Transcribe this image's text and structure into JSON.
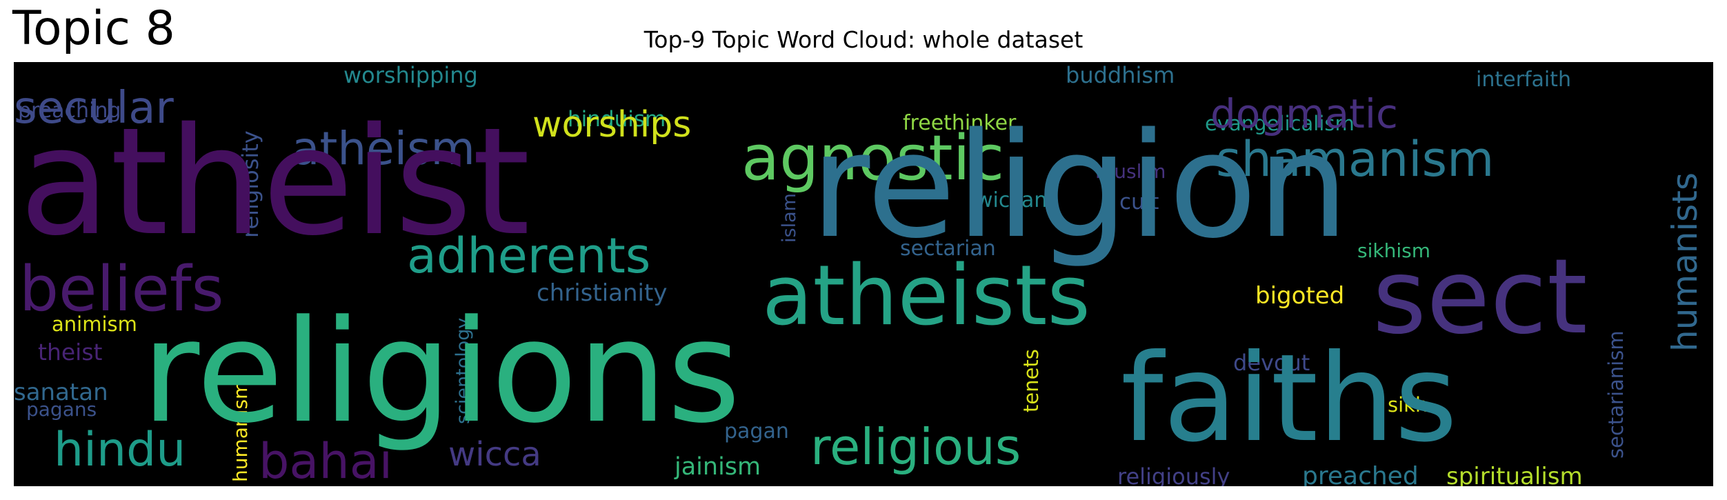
{
  "figure": {
    "topic_title": "Topic 8",
    "title": "Top-9 Topic Word Cloud: whole dataset"
  },
  "chart_data": {
    "type": "wordcloud",
    "title": "Top-9 Topic Word Cloud: whole dataset",
    "background": "#000000",
    "words": [
      {
        "text": "atheist",
        "weight": 1.0,
        "color": "#440f5e"
      },
      {
        "text": "religion",
        "weight": 0.98,
        "color": "#2d708e"
      },
      {
        "text": "religions",
        "weight": 0.95,
        "color": "#2ab07f"
      },
      {
        "text": "faiths",
        "weight": 0.8,
        "color": "#277f8e"
      },
      {
        "text": "sect",
        "weight": 0.7,
        "color": "#46327e"
      },
      {
        "text": "atheists",
        "weight": 0.55,
        "color": "#25a386"
      },
      {
        "text": "agnostic",
        "weight": 0.45,
        "color": "#5ec962"
      },
      {
        "text": "beliefs",
        "weight": 0.45,
        "color": "#481a6c"
      },
      {
        "text": "religious",
        "weight": 0.37,
        "color": "#2ab07f"
      },
      {
        "text": "shamanism",
        "weight": 0.35,
        "color": "#2a788e"
      },
      {
        "text": "adherents",
        "weight": 0.35,
        "color": "#1f9e89"
      },
      {
        "text": "atheism",
        "weight": 0.32,
        "color": "#3b528b"
      },
      {
        "text": "bahai",
        "weight": 0.33,
        "color": "#471365"
      },
      {
        "text": "hindu",
        "weight": 0.32,
        "color": "#1e9c89"
      },
      {
        "text": "secular",
        "weight": 0.3,
        "color": "#3e4a89"
      },
      {
        "text": "dogmatic",
        "weight": 0.28,
        "color": "#472f7d"
      },
      {
        "text": "worships",
        "weight": 0.28,
        "color": "#d0e11c"
      },
      {
        "text": "humanists",
        "weight": 0.25,
        "color": "#31688e"
      },
      {
        "text": "wicca",
        "weight": 0.25,
        "color": "#443a83"
      },
      {
        "text": "christianity",
        "weight": 0.18,
        "color": "#33638d"
      },
      {
        "text": "religiosity",
        "weight": 0.18,
        "color": "#3b528b"
      },
      {
        "text": "worshipping",
        "weight": 0.17,
        "color": "#23888e"
      },
      {
        "text": "buddhism",
        "weight": 0.17,
        "color": "#2d708e"
      },
      {
        "text": "hinduism",
        "weight": 0.17,
        "color": "#22a884"
      },
      {
        "text": "bigoted",
        "weight": 0.16,
        "color": "#fde725"
      },
      {
        "text": "preached",
        "weight": 0.16,
        "color": "#2a788e"
      },
      {
        "text": "spiritualism",
        "weight": 0.16,
        "color": "#b5de2b"
      },
      {
        "text": "jainism",
        "weight": 0.16,
        "color": "#35b779"
      },
      {
        "text": "sectarianism",
        "weight": 0.15,
        "color": "#3b528b"
      },
      {
        "text": "religiously",
        "weight": 0.15,
        "color": "#424086"
      },
      {
        "text": "devout",
        "weight": 0.15,
        "color": "#3e4989"
      },
      {
        "text": "interfaith",
        "weight": 0.14,
        "color": "#2c728e"
      },
      {
        "text": "evangelicalism",
        "weight": 0.14,
        "color": "#1f9a8a"
      },
      {
        "text": "freethinker",
        "weight": 0.14,
        "color": "#8fd744"
      },
      {
        "text": "preaching",
        "weight": 0.14,
        "color": "#3e4a89"
      },
      {
        "text": "theist",
        "weight": 0.14,
        "color": "#482475"
      },
      {
        "text": "sanatan",
        "weight": 0.14,
        "color": "#31688e"
      },
      {
        "text": "cult",
        "weight": 0.14,
        "color": "#3b528b"
      },
      {
        "text": "wiccan",
        "weight": 0.13,
        "color": "#23888e"
      },
      {
        "text": "sectarian",
        "weight": 0.13,
        "color": "#33638d"
      },
      {
        "text": "pagan",
        "weight": 0.13,
        "color": "#33638d"
      },
      {
        "text": "muslim",
        "weight": 0.12,
        "color": "#46327e"
      },
      {
        "text": "sikhism",
        "weight": 0.12,
        "color": "#35b779"
      },
      {
        "text": "animism",
        "weight": 0.12,
        "color": "#dde318"
      },
      {
        "text": "sikh",
        "weight": 0.12,
        "color": "#dde318"
      },
      {
        "text": "tenets",
        "weight": 0.12,
        "color": "#d8e219"
      },
      {
        "text": "pagans",
        "weight": 0.12,
        "color": "#3b528b"
      },
      {
        "text": "humanism",
        "weight": 0.12,
        "color": "#fde725"
      },
      {
        "text": "scientology",
        "weight": 0.11,
        "color": "#2d708e"
      },
      {
        "text": "islam",
        "weight": 0.11,
        "color": "#3b528b"
      }
    ]
  }
}
